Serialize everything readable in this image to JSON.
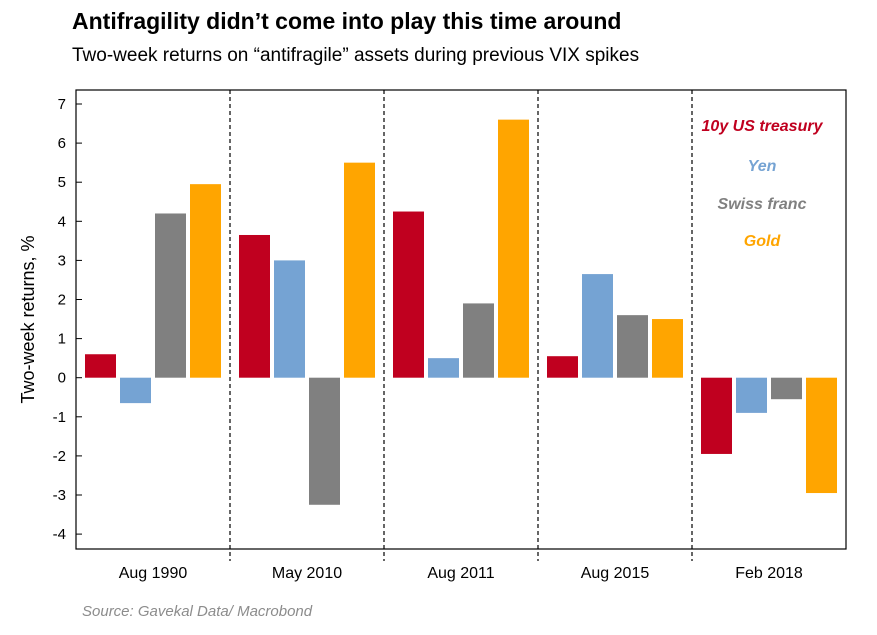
{
  "chart_data": {
    "type": "bar",
    "title": "Antifragility didn’t come into play this time around",
    "subtitle": "Two-week returns on “antifragile” assets during previous VIX spikes",
    "ylabel": "Two-week returns, %",
    "xlabel": "",
    "ylim": [
      -4,
      7
    ],
    "yticks": [
      -4,
      -3,
      -2,
      -1,
      0,
      1,
      2,
      3,
      4,
      5,
      6,
      7
    ],
    "categories": [
      "Aug 1990",
      "May 2010",
      "Aug 2011",
      "Aug 2015",
      "Feb 2018"
    ],
    "series": [
      {
        "name": "10y US treasury",
        "color": "#c0001f",
        "values": [
          0.6,
          3.65,
          4.25,
          0.55,
          -1.95
        ]
      },
      {
        "name": "Yen",
        "color": "#75a3d3",
        "values": [
          -0.65,
          3.0,
          0.5,
          2.65,
          -0.9
        ]
      },
      {
        "name": "Swiss franc",
        "color": "#808080",
        "values": [
          4.2,
          -3.25,
          1.9,
          1.6,
          -0.55
        ]
      },
      {
        "name": "Gold",
        "color": "#ffa500",
        "values": [
          4.95,
          5.5,
          6.6,
          1.5,
          -2.95
        ]
      }
    ],
    "grid": false,
    "legend_position": "top-right",
    "category_dividers": "dashed"
  },
  "source": "Source: Gavekal Data/ Macrobond"
}
